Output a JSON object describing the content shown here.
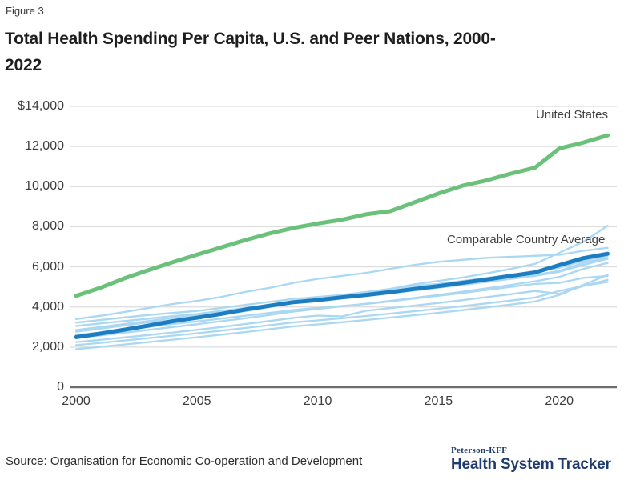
{
  "figure_label": "Figure 3",
  "title": "Total Health Spending Per Capita, U.S. and Peer Nations, 2000-2022",
  "source": "Source: Organisation for Economic Co-operation and Development",
  "logo": {
    "top": "Peterson-KFF",
    "main": "Health System Tracker",
    "color": "#1f3a6d"
  },
  "chart_data": {
    "type": "line",
    "title": "Total Health Spending Per Capita, U.S. and Peer Nations, 2000-2022",
    "xlabel": "",
    "ylabel": "",
    "xlim": [
      2000,
      2022
    ],
    "ylim": [
      0,
      14000
    ],
    "grid": "horizontal",
    "legend_position": "inline-annotations",
    "x": [
      2000,
      2001,
      2002,
      2003,
      2004,
      2005,
      2006,
      2007,
      2008,
      2009,
      2010,
      2011,
      2012,
      2013,
      2014,
      2015,
      2016,
      2017,
      2018,
      2019,
      2020,
      2021,
      2022
    ],
    "x_ticks": [
      {
        "value": 2000,
        "label": "2000"
      },
      {
        "value": 2005,
        "label": "2005"
      },
      {
        "value": 2010,
        "label": "2010"
      },
      {
        "value": 2015,
        "label": "2015"
      },
      {
        "value": 2020,
        "label": "2020"
      }
    ],
    "y_ticks": [
      {
        "value": 14000,
        "label": "$14,000"
      },
      {
        "value": 12000,
        "label": "12,000"
      },
      {
        "value": 10000,
        "label": "10,000"
      },
      {
        "value": 8000,
        "label": "8,000"
      },
      {
        "value": 6000,
        "label": "6,000"
      },
      {
        "value": 4000,
        "label": "4,000"
      },
      {
        "value": 2000,
        "label": "2,000"
      },
      {
        "value": 0,
        "label": "0"
      }
    ],
    "colors": {
      "united_states": "#6bc17a",
      "comparable_average": "#1d7dc2",
      "peer_nation": "#aad7f2",
      "grid": "#dcdcdc",
      "axis": "#6e6e6e"
    },
    "annotations": {
      "us": {
        "text": "United States",
        "year": 2022,
        "value": 12555
      },
      "avg": {
        "text": "Comparable Country Average",
        "year": 2019,
        "value": 7400
      }
    },
    "series": [
      {
        "id": "peer-1",
        "role": "peer",
        "color": "#aad7f2",
        "width": 2.3,
        "values": [
          2767,
          2920,
          3080,
          3240,
          3330,
          3470,
          3620,
          3790,
          3990,
          4230,
          4400,
          4530,
          4680,
          4900,
          5130,
          5300,
          5470,
          5680,
          5900,
          6150,
          6700,
          7250,
          8050
        ]
      },
      {
        "id": "peer-2",
        "role": "peer",
        "color": "#aad7f2",
        "width": 2.3,
        "values": [
          3400,
          3560,
          3750,
          3950,
          4150,
          4300,
          4500,
          4750,
          4950,
          5200,
          5400,
          5550,
          5700,
          5900,
          6100,
          6250,
          6350,
          6450,
          6500,
          6550,
          6600,
          6800,
          6950
        ]
      },
      {
        "id": "peer-3",
        "role": "peer",
        "color": "#aad7f2",
        "width": 2.3,
        "values": [
          3217,
          3350,
          3480,
          3600,
          3700,
          3800,
          3950,
          4100,
          4250,
          4400,
          4500,
          4600,
          4750,
          4900,
          5050,
          5150,
          5300,
          5450,
          5600,
          5750,
          5950,
          6300,
          6550
        ]
      },
      {
        "id": "peer-4",
        "role": "peer",
        "color": "#aad7f2",
        "width": 2.3,
        "values": [
          3050,
          3180,
          3300,
          3420,
          3540,
          3650,
          3800,
          3950,
          4100,
          4250,
          4350,
          4450,
          4550,
          4700,
          4850,
          5000,
          5150,
          5300,
          5450,
          5600,
          5800,
          6200,
          6450
        ]
      },
      {
        "id": "peer-5",
        "role": "peer",
        "color": "#aad7f2",
        "width": 2.3,
        "values": [
          2850,
          3000,
          3150,
          3300,
          3450,
          3600,
          3750,
          3900,
          4050,
          4200,
          4300,
          4420,
          4540,
          4680,
          4820,
          4960,
          5100,
          5250,
          5400,
          5550,
          5750,
          6100,
          6400
        ]
      },
      {
        "id": "peer-6",
        "role": "peer",
        "color": "#aad7f2",
        "width": 2.3,
        "values": [
          2600,
          2730,
          2870,
          3010,
          3150,
          3280,
          3420,
          3560,
          3700,
          3850,
          3950,
          4050,
          4150,
          4280,
          4420,
          4560,
          4700,
          4850,
          5000,
          5150,
          5200,
          5450,
          5550
        ]
      },
      {
        "id": "peer-7",
        "role": "peer",
        "color": "#aad7f2",
        "width": 2.3,
        "values": [
          2450,
          2580,
          2720,
          2860,
          3000,
          3140,
          3290,
          3440,
          3600,
          3770,
          3900,
          4030,
          4160,
          4300,
          4450,
          4600,
          4760,
          4930,
          5100,
          5280,
          5500,
          5900,
          6200
        ]
      },
      {
        "id": "peer-8",
        "role": "peer",
        "color": "#aad7f2",
        "width": 2.3,
        "values": [
          2250,
          2360,
          2480,
          2600,
          2730,
          2860,
          3000,
          3150,
          3300,
          3460,
          3570,
          3530,
          3810,
          3940,
          4070,
          4200,
          4340,
          4490,
          4640,
          4800,
          4650,
          5050,
          5350
        ]
      },
      {
        "id": "peer-9",
        "role": "peer",
        "color": "#aad7f2",
        "width": 2.3,
        "values": [
          2100,
          2210,
          2330,
          2450,
          2570,
          2690,
          2820,
          2950,
          3090,
          3230,
          3330,
          3440,
          3550,
          3670,
          3790,
          3910,
          4040,
          4180,
          4320,
          4470,
          4800,
          5050,
          5250
        ]
      },
      {
        "id": "peer-10",
        "role": "peer",
        "color": "#aad7f2",
        "width": 2.3,
        "values": [
          1900,
          2010,
          2130,
          2250,
          2370,
          2490,
          2620,
          2750,
          2890,
          3030,
          3130,
          3240,
          3350,
          3470,
          3590,
          3710,
          3840,
          3980,
          4120,
          4270,
          4600,
          5100,
          5600
        ]
      },
      {
        "id": "comparable-average",
        "role": "average",
        "name": "Comparable Country Average",
        "color": "#1d7dc2",
        "width": 5,
        "values": [
          2497,
          2672,
          2866,
          3072,
          3290,
          3461,
          3655,
          3872,
          4062,
          4240,
          4343,
          4483,
          4603,
          4744,
          4899,
          5042,
          5205,
          5374,
          5551,
          5722,
          6086,
          6432,
          6651
        ]
      },
      {
        "id": "united-states",
        "role": "us",
        "name": "United States",
        "color": "#6bc17a",
        "width": 5,
        "values": [
          4559,
          4954,
          5427,
          5838,
          6234,
          6605,
          6968,
          7334,
          7666,
          7943,
          8162,
          8350,
          8621,
          8775,
          9212,
          9655,
          10047,
          10316,
          10648,
          10948,
          11902,
          12197,
          12555
        ]
      }
    ]
  }
}
